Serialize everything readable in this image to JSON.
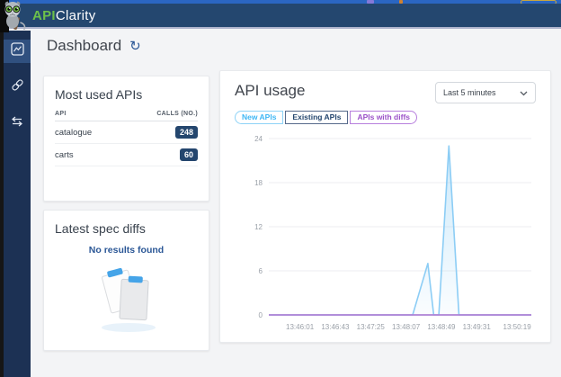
{
  "colors": {
    "header_bg": "#24476f",
    "sidebar_bg": "#1c3154",
    "brand_green": "#6cc04a",
    "badge_navy": "#24466e",
    "link_blue": "#2b5796",
    "series_blue": "#8ccdf5",
    "series_purple": "#c58ce6"
  },
  "icons": {
    "refresh_glyph": "↻"
  },
  "header": {
    "brand_api": "API",
    "brand_clarity": "Clarity"
  },
  "page": {
    "title": "Dashboard"
  },
  "most_used_apis": {
    "title": "Most used APIs",
    "columns": [
      "API",
      "CALLS (NO.)"
    ],
    "rows": [
      {
        "api": "catalogue",
        "calls": "248"
      },
      {
        "api": "carts",
        "calls": "60"
      }
    ]
  },
  "latest_spec_diffs": {
    "title": "Latest spec diffs",
    "empty_message": "No results found"
  },
  "api_usage": {
    "title": "API usage",
    "time_range_selected": "Last 5 minutes",
    "legend": [
      {
        "label": "New APIs",
        "text_color": "#3eb7f5",
        "border_color": "#8ed3f7"
      },
      {
        "label": "Existing APIs",
        "text_color": "#24466e",
        "border_color": "#56698a"
      },
      {
        "label": "APIs with diffs",
        "text_color": "#9b51c8",
        "border_color": "#b77fdd"
      }
    ]
  },
  "chart_data": {
    "type": "line",
    "title": "API usage",
    "legend_position": "top-left",
    "grid": "horizontal",
    "x_axis": {
      "start": "13:45:24",
      "end": "13:50:36",
      "tick_labels": [
        "13:46:01",
        "13:46:43",
        "13:47:25",
        "13:48:07",
        "13:48:49",
        "13:49:31",
        "13:50:19"
      ]
    },
    "y_axis": {
      "min": 0,
      "max": 24,
      "ticks": [
        0,
        6,
        12,
        18,
        24
      ]
    },
    "series": [
      {
        "name": "New APIs",
        "color": "#8ccdf5",
        "fill": true,
        "points": [
          [
            "13:45:24",
            0
          ],
          [
            "13:48:15",
            0
          ],
          [
            "13:48:33",
            7
          ],
          [
            "13:48:40",
            0
          ],
          [
            "13:48:46",
            0
          ],
          [
            "13:48:58",
            23
          ],
          [
            "13:49:10",
            0
          ],
          [
            "13:50:36",
            0
          ]
        ]
      },
      {
        "name": "Existing APIs",
        "color": "#24466e",
        "fill": false,
        "points": [
          [
            "13:45:24",
            0
          ],
          [
            "13:50:36",
            0
          ]
        ]
      },
      {
        "name": "APIs with diffs",
        "color": "#c58ce6",
        "fill": false,
        "points": [
          [
            "13:45:24",
            0
          ],
          [
            "13:50:36",
            0
          ]
        ]
      }
    ]
  }
}
